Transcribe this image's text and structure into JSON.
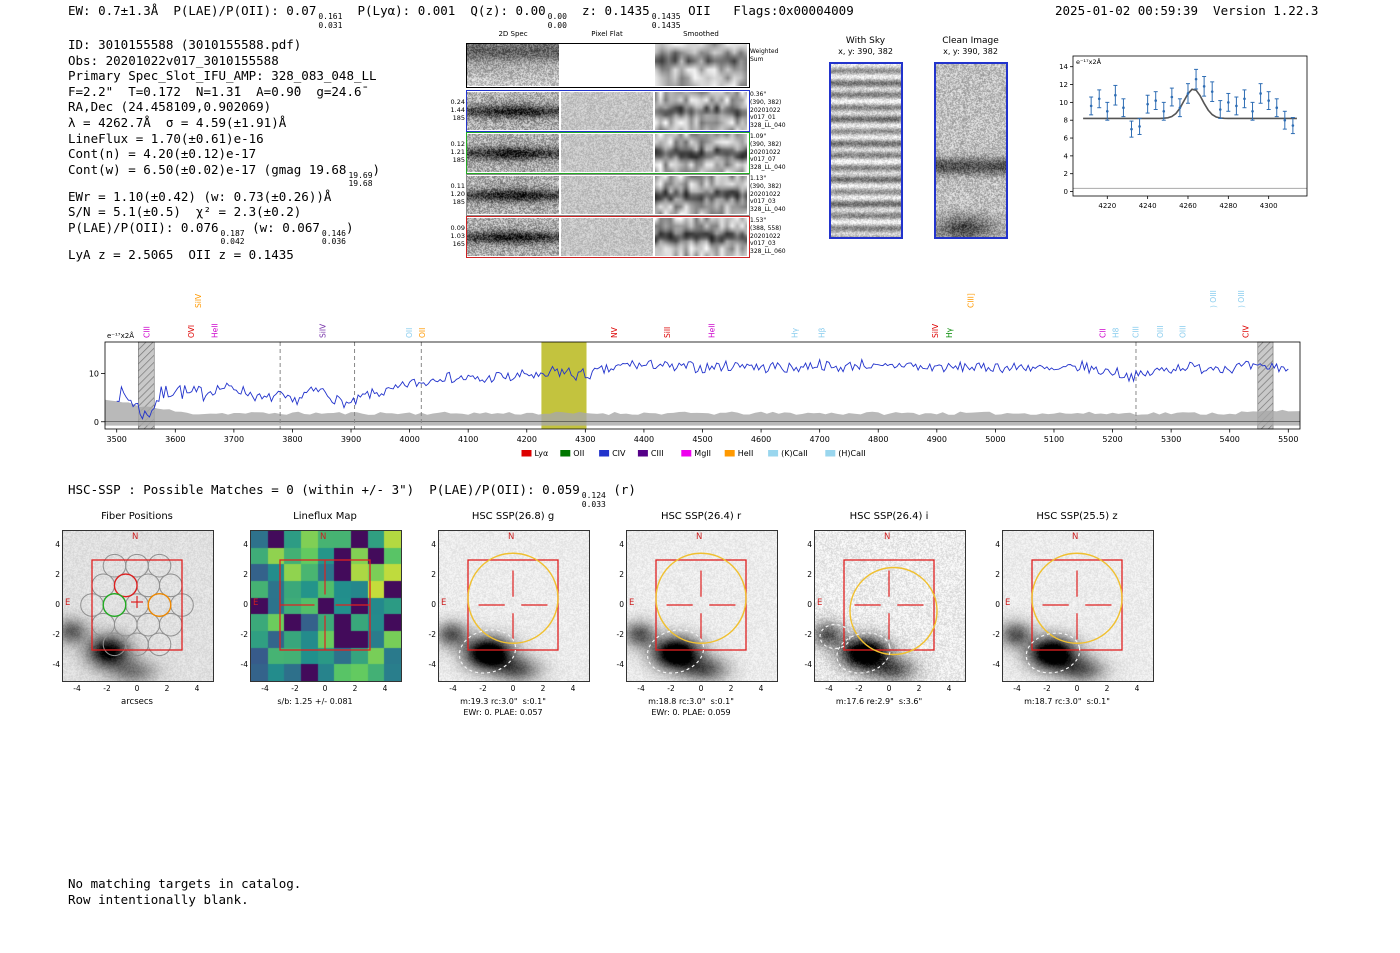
{
  "meta": {
    "right_text": "2025-01-02 00:59:39  Version 1.22.3"
  },
  "header": {
    "segments": [
      {
        "t": "EW: 0.7±1.3Å  P(LAE)/P(OII): 0.07"
      },
      {
        "sup": "0.161",
        "sub": "0.031"
      },
      {
        "t": "  P(Lyα): 0.001  Q(z): 0.00"
      },
      {
        "sup": "0.00",
        "sub": "0.00"
      },
      {
        "t": "  z: 0.1435"
      },
      {
        "sup": "0.1435",
        "sub": "0.1435"
      },
      {
        "t": " OII   Flags:0x00004009"
      }
    ]
  },
  "info_block": {
    "lines": [
      [
        {
          "t": "ID: 3010155588 (3010155588.pdf)"
        }
      ],
      [
        {
          "t": "Obs: 20201022v017_3010155588"
        }
      ],
      [
        {
          "t": "Primary Spec_Slot_IFU_AMP: 328_083_048_LL"
        }
      ],
      [
        {
          "t": "F=2.2\"  T=0.172  N=1.3̄1  A=0.9̄0  g=24.6̄"
        }
      ],
      [
        {
          "t": "RA,Dec (24.458109,0.902069)"
        }
      ],
      [
        {
          "t": "λ = 4262.7Å  σ = 4.59(±1.91)Å"
        }
      ],
      [
        {
          "t": "LineFlux = 1.70(±0.61)e-16"
        }
      ],
      [
        {
          "t": "Cont(n) = 4.20(±0.12)e-17"
        }
      ],
      [
        {
          "t": "Cont(w) = 6.50(±0.02)e-17 (gmag 19.68"
        },
        {
          "sup": "19.69",
          "sub": "19.68"
        },
        {
          "t": ")"
        }
      ],
      [
        {
          "t": "EWr = 1.10(±0.42) (w: 0.73(±0.26))Å"
        }
      ],
      [
        {
          "t": "S/N = 5.1(±0.5)  χ² = 2.3(±0.2)"
        }
      ],
      [
        {
          "t": "P(LAE)/P(OII): 0.076"
        },
        {
          "sup": "0.187",
          "sub": "0.042"
        },
        {
          "t": " (w: 0.067"
        },
        {
          "sup": "0.146",
          "sub": "0.036"
        },
        {
          "t": ")"
        }
      ],
      [
        {
          "t": "LyA z = 2.5065  OII z = 0.1435"
        }
      ]
    ]
  },
  "spec2d": {
    "col_titles": [
      "2D Spec",
      "Pixel Flat",
      "Smoothed"
    ],
    "weighted_sum": [
      "Weighted",
      "Sum"
    ],
    "rows": [
      {
        "color": "#2233cc",
        "left": [
          "0.24",
          "1.44",
          "185"
        ],
        "right": [
          "0.36\"",
          "(390, 382)",
          "20201022",
          "v017_01",
          "328_LL_040"
        ]
      },
      {
        "color": "#22aa22",
        "left": [
          "0.12",
          "1.21",
          "185"
        ],
        "right": [
          "1.09\"",
          "(390, 382)",
          "20201022",
          "v017_07",
          "328_LL_040"
        ]
      },
      {
        "color": "#8a8a8a",
        "left": [
          "0.11",
          "1.20",
          "185"
        ],
        "right": [
          "1.13\"",
          "(390, 382)",
          "20201022",
          "v017_03",
          "328_LL_040"
        ]
      },
      {
        "color": "#cc2222",
        "left": [
          "0.09",
          "1.03",
          "165"
        ],
        "right": [
          "1.53\"",
          "(388, 558)",
          "20201022",
          "v017_03",
          "328_LL_060"
        ]
      }
    ]
  },
  "sky_panels": {
    "with_sky": {
      "title": "With Sky",
      "coords": "x, y: 390, 382"
    },
    "clean": {
      "title": "Clean Image",
      "coords": "x, y: 390, 382"
    },
    "border_color": "#2233cc"
  },
  "chart_data": [
    {
      "type": "scatter",
      "ylabel": "e⁻¹⁷x2Å",
      "xlim": [
        4203,
        4319
      ],
      "ylim": [
        -0.5,
        15.2
      ],
      "xticks": [
        4220,
        4240,
        4260,
        4280,
        4300
      ],
      "yticks": [
        0,
        2,
        4,
        6,
        8,
        10,
        12,
        14
      ],
      "x": [
        4212,
        4216,
        4220,
        4224,
        4228,
        4232,
        4236,
        4240,
        4244,
        4248,
        4252,
        4256,
        4260,
        4264,
        4268,
        4272,
        4276,
        4280,
        4284,
        4288,
        4292,
        4296,
        4300,
        4304,
        4308,
        4312
      ],
      "y": [
        9.6,
        10.4,
        9.0,
        10.8,
        9.4,
        7.0,
        7.3,
        9.8,
        10.2,
        9.0,
        10.6,
        9.4,
        11.0,
        12.6,
        11.8,
        11.2,
        9.2,
        10.0,
        9.6,
        10.4,
        9.0,
        11.0,
        10.2,
        9.4,
        8.0,
        7.4
      ],
      "err": [
        1.0,
        1.0,
        1.0,
        1.1,
        1.0,
        0.9,
        0.9,
        1.0,
        1.0,
        1.0,
        1.0,
        1.0,
        1.1,
        1.1,
        1.1,
        1.1,
        1.0,
        1.0,
        1.0,
        1.0,
        1.0,
        1.1,
        1.0,
        1.0,
        1.0,
        0.9
      ],
      "fit": {
        "baseline": 8.2,
        "amplitude": 3.3,
        "center": 4262.7,
        "sigma": 4.59
      },
      "point_color": "#2e6db4",
      "fit_color": "#555555"
    },
    {
      "type": "line",
      "ylabel": "e⁻¹⁷x2Å",
      "xlim": [
        3480,
        5520
      ],
      "ylim": [
        -1.5,
        16.5
      ],
      "xticks": [
        3500,
        3600,
        3700,
        3800,
        3900,
        4000,
        4100,
        4200,
        4300,
        4400,
        4500,
        4600,
        4700,
        4800,
        4900,
        5000,
        5100,
        5200,
        5300,
        5400,
        5500
      ],
      "yticks": [
        0,
        10
      ],
      "x0": 3500,
      "dx": 25,
      "flux": [
        6,
        4.5,
        1,
        5.5,
        7,
        5.5,
        6,
        7,
        7,
        6,
        4.5,
        5.5,
        4,
        6,
        6.5,
        4.5,
        3.5,
        5.5,
        6,
        6.5,
        8,
        8,
        9.5,
        9,
        9,
        8.5,
        9.5,
        9,
        10,
        9,
        10.5,
        10,
        9.5,
        10.5,
        11,
        12,
        11.5,
        12,
        11,
        11.5,
        11,
        11.5,
        11.5,
        12,
        11,
        11.5,
        11,
        11.5,
        12,
        11,
        11.5,
        12,
        11,
        11.5,
        12,
        11,
        11.5,
        11,
        11.5,
        11,
        11.5,
        11,
        11.5,
        11,
        10.5,
        11,
        11.5,
        10.5,
        10.5,
        9.5,
        9.5,
        10.5,
        11,
        11.5,
        11,
        11.5,
        11,
        11.5,
        11,
        11.5,
        11
      ],
      "line_color": "#2233cc",
      "highlight_band": {
        "x0": 4225,
        "x1": 4302,
        "color": "#b9b91c"
      },
      "hatch_bands": [
        {
          "x0": 3537,
          "x1": 3564
        },
        {
          "x0": 5448,
          "x1": 5474
        }
      ],
      "dashed_lines": [
        3779,
        3906,
        4020,
        5240
      ],
      "line_labels": [
        {
          "label": "CIII",
          "wave": 3552,
          "color": "#cc00cc"
        },
        {
          "label": "SiIV",
          "wave": 3640,
          "color": "#ff9900",
          "top": true
        },
        {
          "label": "OVI",
          "wave": 3628,
          "color": "#dd0000"
        },
        {
          "label": "HeII",
          "wave": 3668,
          "color": "#cc00cc"
        },
        {
          "label": "SiIV",
          "wave": 3852,
          "color": "#7733aa"
        },
        {
          "label": "OII",
          "wave": 4000,
          "color": "#88ccee"
        },
        {
          "label": "OII",
          "wave": 4022,
          "color": "#ff9900"
        },
        {
          "label": "NV",
          "wave": 4350,
          "color": "#dd0000"
        },
        {
          "label": "SiII",
          "wave": 4440,
          "color": "#dd0000"
        },
        {
          "label": "HeII",
          "wave": 4516,
          "color": "#cc00cc"
        },
        {
          "label": "Hγ",
          "wave": 4658,
          "color": "#88ccee"
        },
        {
          "label": "Hβ",
          "wave": 4704,
          "color": "#88ccee"
        },
        {
          "label": "SiIV",
          "wave": 4898,
          "color": "#dd0000"
        },
        {
          "label": "Hγ",
          "wave": 4922,
          "color": "#008800"
        },
        {
          "label": "CIII]",
          "wave": 4958,
          "color": "#ff9900",
          "top": true
        },
        {
          "label": "CII",
          "wave": 5184,
          "color": "#cc00cc"
        },
        {
          "label": "H8",
          "wave": 5206,
          "color": "#88ccee"
        },
        {
          "label": "CIII",
          "wave": 5240,
          "color": "#88ccee"
        },
        {
          "label": "OIII",
          "wave": 5282,
          "color": "#88ccee"
        },
        {
          "label": "OIII",
          "wave": 5320,
          "color": "#88ccee"
        },
        {
          "label": ") OIII",
          "wave": 5372,
          "color": "#88ccee",
          "top": true
        },
        {
          "label": ") OIII",
          "wave": 5420,
          "color": "#88ccee",
          "top": true
        },
        {
          "label": "CIV",
          "wave": 5428,
          "color": "#dd0000"
        }
      ],
      "legend": [
        {
          "label": "Lyα",
          "color": "#dd0000"
        },
        {
          "label": "OII",
          "color": "#007700"
        },
        {
          "label": "CIV",
          "color": "#2233cc"
        },
        {
          "label": "CIII",
          "color": "#550088"
        },
        {
          "label": "MgII",
          "color": "#ee00ee"
        },
        {
          "label": "HeII",
          "color": "#ff9900"
        },
        {
          "label": "(K)CaII",
          "color": "#99d6ee"
        },
        {
          "label": "(H)CaII",
          "color": "#99d6ee"
        }
      ]
    }
  ],
  "hsc_line": {
    "segments": [
      {
        "t": "HSC-SSP : Possible Matches = 0 (within +/- 3\")  P(LAE)/P(OII): 0.059"
      },
      {
        "sup": "0.124",
        "sub": "0.033"
      },
      {
        "t": " (r)"
      }
    ]
  },
  "cutouts": {
    "axis_ticks": [
      -4,
      -2,
      0,
      2,
      4
    ],
    "compass": {
      "north": "N",
      "east": "E"
    },
    "panels": [
      {
        "id": "fiber",
        "title": "Fiber Positions",
        "xlabel": "arcsecs"
      },
      {
        "id": "lineflux",
        "title": "Lineflux Map",
        "caption": "s/b: 1.25 +/- 0.081"
      },
      {
        "id": "g",
        "title": "HSC SSP(26.8) g",
        "caption": "m:19.3 rc:3.0\"  s:0.1\"",
        "caption2": "EWr: 0. PLAE: 0.057"
      },
      {
        "id": "r",
        "title": "HSC SSP(26.4) r",
        "caption": "m:18.8 rc:3.0\"  s:0.1\"",
        "caption2": "EWr: 0. PLAE: 0.059"
      },
      {
        "id": "i",
        "title": "HSC SSP(26.4) i",
        "caption": "m:17.6 re:2.9\"  s:3.6\""
      },
      {
        "id": "z",
        "title": "HSC SSP(25.5) z",
        "caption": "m:18.7 rc:3.0\"  s:0.1\""
      }
    ]
  },
  "footer": {
    "lines": [
      "No matching targets in catalog.",
      "Row intentionally blank."
    ]
  }
}
